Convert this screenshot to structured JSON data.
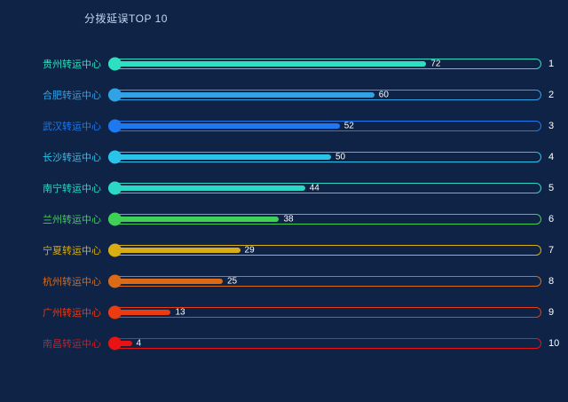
{
  "chart_data": {
    "type": "bar",
    "orientation": "horizontal",
    "title": "分拨延误TOP 10",
    "xlabel": "",
    "ylabel": "",
    "xlim": [
      0,
      100
    ],
    "grid": false,
    "categories": [
      "贵州转运中心",
      "合肥转运中心",
      "武汉转运中心",
      "长沙转运中心",
      "南宁转运中心",
      "兰州转运中心",
      "宁夏转运中心",
      "杭州转运中心",
      "广州转运中心",
      "南昌转运中心"
    ],
    "values": [
      72,
      60,
      52,
      50,
      44,
      38,
      29,
      25,
      13,
      4
    ],
    "colors": [
      "#2de0c1",
      "#2fa3e6",
      "#1e78f0",
      "#28c4e9",
      "#2bd8c5",
      "#3fd156",
      "#d9ae14",
      "#db6b16",
      "#ea3b11",
      "#e81414"
    ],
    "background": "#0e2346",
    "rows": [
      {
        "label": "贵州转运中心",
        "value": 72,
        "rank": "1",
        "color": "#2de0c1"
      },
      {
        "label": "合肥转运中心",
        "value": 60,
        "rank": "2",
        "color": "#2fa3e6"
      },
      {
        "label": "武汉转运中心",
        "value": 52,
        "rank": "3",
        "color": "#1e78f0"
      },
      {
        "label": "长沙转运中心",
        "value": 50,
        "rank": "4",
        "color": "#28c4e9"
      },
      {
        "label": "南宁转运中心",
        "value": 44,
        "rank": "5",
        "color": "#2bd8c5"
      },
      {
        "label": "兰州转运中心",
        "value": 38,
        "rank": "6",
        "color": "#3fd156"
      },
      {
        "label": "宁夏转运中心",
        "value": 29,
        "rank": "7",
        "color": "#d9ae14"
      },
      {
        "label": "杭州转运中心",
        "value": 25,
        "rank": "8",
        "color": "#db6b16"
      },
      {
        "label": "广州转运中心",
        "value": 13,
        "rank": "9",
        "color": "#ea3b11"
      },
      {
        "label": "南昌转运中心",
        "value": 4,
        "rank": "10",
        "color": "#e81414"
      }
    ]
  }
}
